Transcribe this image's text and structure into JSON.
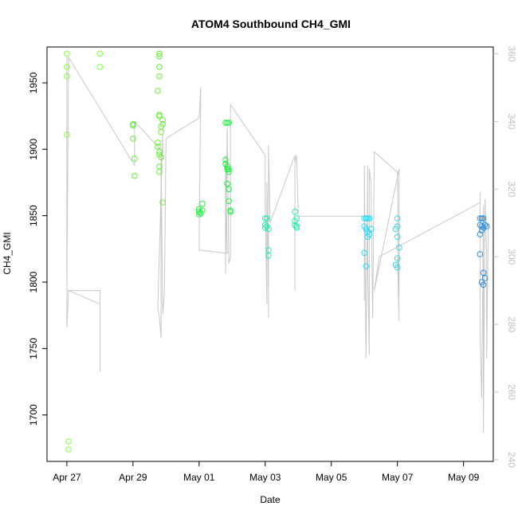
{
  "chart_data": {
    "type": "scatter",
    "title": "ATOM4 Southbound CH4_GMI",
    "xlabel": "Date",
    "ylabel": "CH4_GMI",
    "x_ticks": [
      "Apr 27",
      "Apr 29",
      "May 01",
      "May 03",
      "May 05",
      "May 07",
      "May 09"
    ],
    "x_range_days": [
      -0.6,
      12.9
    ],
    "ylim": [
      1665,
      1977
    ],
    "y_ticks": [
      1700,
      1750,
      1800,
      1850,
      1900,
      1950
    ],
    "y2lim": [
      239.5,
      362
    ],
    "y2_ticks": [
      240,
      260,
      280,
      300,
      320,
      340,
      360
    ],
    "grid": false,
    "series": [
      {
        "color": "#7fff3f",
        "points": [
          [
            0.0,
            1972
          ],
          [
            0.0,
            1962
          ],
          [
            0.0,
            1955
          ],
          [
            0.0,
            1911
          ],
          [
            0.05,
            1680
          ],
          [
            0.05,
            1674
          ],
          [
            1.0,
            1972
          ],
          [
            1.0,
            1962
          ]
        ]
      },
      {
        "color": "#5fef30",
        "points": [
          [
            2.0,
            1919
          ],
          [
            2.0,
            1918
          ],
          [
            2.0,
            1908
          ],
          [
            2.05,
            1893
          ],
          [
            2.05,
            1880
          ],
          [
            2.8,
            1972
          ],
          [
            2.8,
            1970
          ],
          [
            2.8,
            1962
          ],
          [
            2.8,
            1955
          ],
          [
            2.75,
            1944
          ],
          [
            2.8,
            1926
          ],
          [
            2.8,
            1925
          ],
          [
            2.9,
            1922
          ],
          [
            2.9,
            1919
          ],
          [
            2.85,
            1917
          ],
          [
            2.85,
            1913
          ],
          [
            2.75,
            1905
          ],
          [
            2.75,
            1902
          ],
          [
            2.8,
            1898
          ],
          [
            2.8,
            1896
          ],
          [
            2.85,
            1894
          ],
          [
            2.8,
            1887
          ],
          [
            2.8,
            1883
          ],
          [
            2.9,
            1860
          ]
        ]
      },
      {
        "color": "#22ee44",
        "points": [
          [
            4.0,
            1855
          ],
          [
            4.0,
            1853
          ],
          [
            4.0,
            1851
          ],
          [
            4.05,
            1852
          ],
          [
            4.1,
            1859
          ],
          [
            4.1,
            1854
          ],
          [
            4.8,
            1920
          ],
          [
            4.85,
            1920
          ],
          [
            4.9,
            1920
          ],
          [
            4.8,
            1892
          ],
          [
            4.8,
            1889
          ],
          [
            4.85,
            1887
          ],
          [
            4.85,
            1885
          ],
          [
            4.9,
            1885
          ],
          [
            4.9,
            1883
          ],
          [
            4.85,
            1874
          ],
          [
            4.9,
            1870
          ],
          [
            4.9,
            1861
          ],
          [
            4.95,
            1854
          ],
          [
            4.95,
            1853
          ]
        ]
      },
      {
        "color": "#22efb0",
        "points": [
          [
            6.0,
            1848
          ],
          [
            6.05,
            1848
          ],
          [
            6.0,
            1843
          ],
          [
            6.0,
            1841
          ],
          [
            6.1,
            1840
          ],
          [
            6.05,
            1842
          ],
          [
            6.1,
            1824
          ],
          [
            6.1,
            1820
          ],
          [
            6.9,
            1853
          ],
          [
            6.9,
            1846
          ],
          [
            6.95,
            1848
          ],
          [
            6.9,
            1843
          ],
          [
            6.95,
            1841
          ],
          [
            6.95,
            1842
          ]
        ]
      },
      {
        "color": "#2ad8f0",
        "points": [
          [
            9.0,
            1848
          ],
          [
            9.05,
            1848
          ],
          [
            9.1,
            1848
          ],
          [
            9.15,
            1848
          ],
          [
            9.0,
            1842
          ],
          [
            9.05,
            1840
          ],
          [
            9.1,
            1838
          ],
          [
            9.15,
            1836
          ],
          [
            9.1,
            1834
          ],
          [
            9.2,
            1840
          ],
          [
            9.0,
            1822
          ],
          [
            9.05,
            1812
          ],
          [
            10.0,
            1848
          ],
          [
            10.0,
            1842
          ],
          [
            9.95,
            1840
          ],
          [
            10.0,
            1834
          ],
          [
            10.05,
            1826
          ],
          [
            10.0,
            1818
          ],
          [
            9.95,
            1813
          ],
          [
            10.0,
            1811
          ]
        ]
      },
      {
        "color": "#1f8fe8",
        "points": [
          [
            12.5,
            1848
          ],
          [
            12.55,
            1848
          ],
          [
            12.6,
            1848
          ],
          [
            12.5,
            1843
          ],
          [
            12.55,
            1842
          ],
          [
            12.6,
            1841
          ],
          [
            12.65,
            1843
          ],
          [
            12.7,
            1842
          ],
          [
            12.55,
            1839
          ],
          [
            12.5,
            1836
          ],
          [
            12.5,
            1821
          ],
          [
            12.6,
            1807
          ],
          [
            12.65,
            1803
          ],
          [
            12.55,
            1800
          ],
          [
            12.6,
            1798
          ]
        ]
      }
    ],
    "line_y2": [
      [
        0.0,
        359
      ],
      [
        0.0,
        279
      ],
      [
        0.05,
        290
      ],
      [
        1.0,
        286
      ],
      [
        1.0,
        266
      ],
      [
        1.0,
        290
      ],
      [
        0.0,
        290
      ],
      [
        0.05,
        359
      ],
      [
        2.05,
        327
      ],
      [
        2.05,
        340
      ],
      [
        2.9,
        331
      ],
      [
        2.9,
        336
      ],
      [
        2.75,
        285
      ],
      [
        2.8,
        282
      ],
      [
        2.85,
        276
      ],
      [
        2.85,
        330
      ],
      [
        2.9,
        283
      ],
      [
        2.95,
        289
      ],
      [
        3.0,
        335
      ],
      [
        4.0,
        341
      ],
      [
        4.05,
        350
      ],
      [
        4.0,
        302
      ],
      [
        4.85,
        301
      ],
      [
        4.8,
        330
      ],
      [
        4.8,
        295
      ],
      [
        4.85,
        338
      ],
      [
        4.9,
        298
      ],
      [
        4.95,
        300
      ],
      [
        4.95,
        330
      ],
      [
        4.95,
        345
      ],
      [
        6.0,
        330
      ],
      [
        6.0,
        316
      ],
      [
        6.05,
        286
      ],
      [
        6.05,
        322
      ],
      [
        6.1,
        289
      ],
      [
        6.1,
        282
      ],
      [
        6.1,
        333
      ],
      [
        6.15,
        310
      ],
      [
        6.9,
        330
      ],
      [
        6.9,
        290
      ],
      [
        6.9,
        328
      ],
      [
        6.95,
        330
      ],
      [
        7.0,
        312
      ],
      [
        9.0,
        312
      ],
      [
        9.0,
        287
      ],
      [
        9.0,
        327
      ],
      [
        9.05,
        270
      ],
      [
        9.1,
        327
      ],
      [
        9.1,
        298
      ],
      [
        9.15,
        271
      ],
      [
        9.15,
        326
      ],
      [
        9.2,
        322
      ],
      [
        9.25,
        282
      ],
      [
        9.3,
        331
      ],
      [
        10.0,
        325
      ],
      [
        10.05,
        281
      ],
      [
        10.0,
        300
      ],
      [
        10.05,
        288
      ],
      [
        10.05,
        326
      ],
      [
        9.3,
        290
      ],
      [
        9.45,
        300
      ],
      [
        12.5,
        316
      ],
      [
        12.5,
        319
      ],
      [
        12.5,
        278
      ],
      [
        12.55,
        258
      ],
      [
        12.6,
        315
      ],
      [
        12.6,
        248
      ],
      [
        12.65,
        317
      ],
      [
        12.7,
        300
      ],
      [
        12.7,
        270
      ],
      [
        12.75,
        310
      ]
    ]
  }
}
